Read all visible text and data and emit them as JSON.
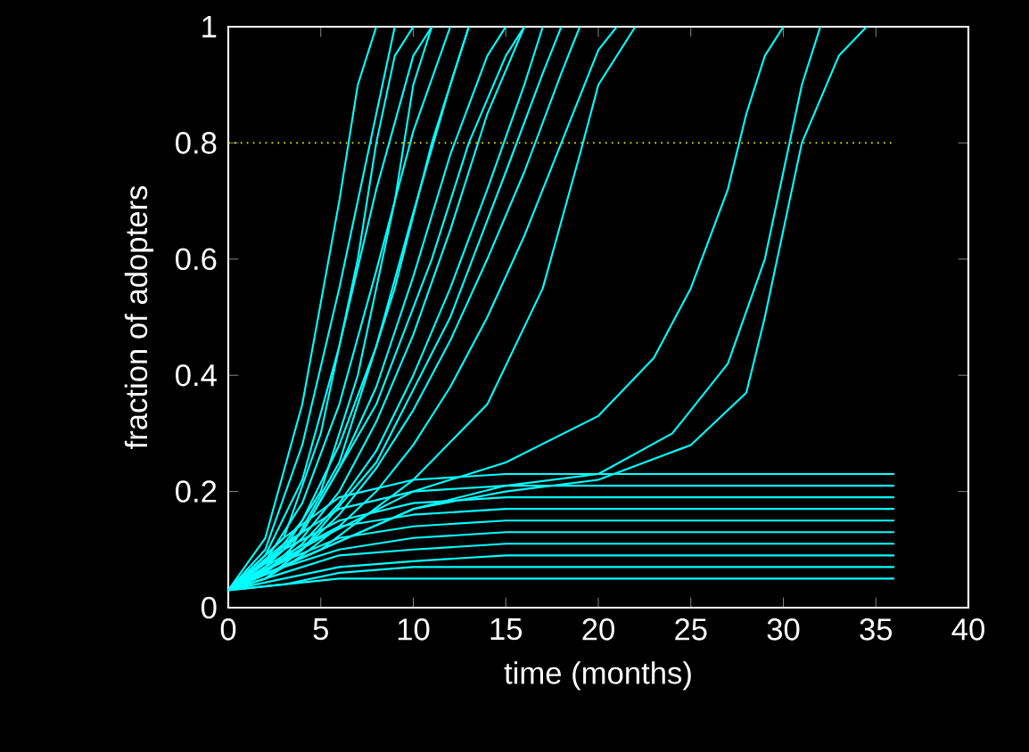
{
  "chart_data": {
    "type": "line",
    "xlabel": "time (months)",
    "ylabel": "fraction of adopters",
    "xlim": [
      0,
      40
    ],
    "ylim": [
      0,
      1
    ],
    "xticks": [
      0,
      5,
      10,
      15,
      20,
      25,
      30,
      35,
      40
    ],
    "yticks": [
      0,
      0.2,
      0.4,
      0.6,
      0.8,
      1
    ],
    "marker": "none",
    "line_style": "solid",
    "ref_lines": [
      {
        "axis": "y",
        "value": 0.8,
        "color": "#ffff00",
        "line_style": "dotted"
      }
    ],
    "series": [
      {
        "color": "#00ffff",
        "x": [
          0,
          2,
          4,
          6,
          7,
          8
        ],
        "values": [
          0.03,
          0.12,
          0.35,
          0.7,
          0.9,
          1
        ]
      },
      {
        "color": "#00ffff",
        "x": [
          0,
          2,
          4,
          6,
          8,
          9
        ],
        "values": [
          0.03,
          0.1,
          0.28,
          0.55,
          0.85,
          1
        ]
      },
      {
        "color": "#00ffff",
        "x": [
          0,
          2,
          4,
          6,
          8,
          10,
          11
        ],
        "values": [
          0.03,
          0.09,
          0.22,
          0.45,
          0.72,
          0.95,
          1
        ]
      },
      {
        "color": "#00ffff",
        "x": [
          0,
          2,
          4,
          6,
          8,
          10,
          12
        ],
        "values": [
          0.03,
          0.08,
          0.18,
          0.35,
          0.58,
          0.82,
          1
        ]
      },
      {
        "color": "#00ffff",
        "x": [
          0,
          2,
          4,
          6,
          8,
          10,
          12,
          13
        ],
        "values": [
          0.03,
          0.07,
          0.15,
          0.28,
          0.45,
          0.68,
          0.9,
          1
        ]
      },
      {
        "color": "#00ffff",
        "x": [
          0,
          2,
          4,
          6,
          8,
          10,
          12,
          14,
          15
        ],
        "values": [
          0.03,
          0.07,
          0.13,
          0.24,
          0.38,
          0.57,
          0.78,
          0.95,
          1
        ]
      },
      {
        "color": "#00ffff",
        "x": [
          0,
          2,
          4,
          6,
          8,
          10,
          12,
          14,
          16
        ],
        "values": [
          0.03,
          0.06,
          0.12,
          0.2,
          0.32,
          0.47,
          0.65,
          0.85,
          1
        ]
      },
      {
        "color": "#00ffff",
        "x": [
          0,
          2,
          4,
          6,
          8,
          10,
          12,
          14,
          16,
          17
        ],
        "values": [
          0.03,
          0.06,
          0.11,
          0.18,
          0.27,
          0.4,
          0.55,
          0.72,
          0.9,
          1
        ]
      },
      {
        "color": "#00ffff",
        "x": [
          0,
          2,
          4,
          6,
          8,
          10,
          12,
          14,
          16,
          18,
          19
        ],
        "values": [
          0.03,
          0.05,
          0.1,
          0.16,
          0.24,
          0.34,
          0.46,
          0.6,
          0.75,
          0.92,
          1
        ]
      },
      {
        "color": "#00ffff",
        "x": [
          0,
          2,
          4,
          6,
          8,
          10,
          12,
          14,
          16,
          18,
          20,
          21
        ],
        "values": [
          0.03,
          0.05,
          0.09,
          0.14,
          0.2,
          0.28,
          0.38,
          0.5,
          0.64,
          0.8,
          0.96,
          1
        ]
      },
      {
        "color": "#00ffff",
        "x": [
          0,
          3,
          5,
          7,
          9,
          10,
          11
        ],
        "values": [
          0.03,
          0.1,
          0.2,
          0.4,
          0.7,
          0.9,
          1
        ]
      },
      {
        "color": "#00ffff",
        "x": [
          0,
          3,
          5,
          7,
          8,
          9,
          10
        ],
        "values": [
          0.03,
          0.12,
          0.3,
          0.6,
          0.8,
          0.95,
          1
        ]
      },
      {
        "color": "#00ffff",
        "x": [
          0,
          3,
          6,
          9,
          11,
          13
        ],
        "values": [
          0.03,
          0.08,
          0.25,
          0.55,
          0.8,
          1
        ]
      },
      {
        "color": "#00ffff",
        "x": [
          0,
          4,
          8,
          11,
          13,
          15,
          16
        ],
        "values": [
          0.03,
          0.13,
          0.35,
          0.6,
          0.8,
          0.95,
          1
        ]
      },
      {
        "color": "#00ffff",
        "x": [
          0,
          4,
          8,
          12,
          15,
          17,
          18
        ],
        "values": [
          0.03,
          0.1,
          0.25,
          0.5,
          0.75,
          0.92,
          1
        ]
      },
      {
        "color": "#00ffff",
        "x": [
          0,
          5,
          10,
          14,
          17,
          19,
          20,
          22
        ],
        "values": [
          0.03,
          0.1,
          0.22,
          0.35,
          0.55,
          0.78,
          0.9,
          1
        ]
      },
      {
        "color": "#00ffff",
        "x": [
          0,
          5,
          10,
          15,
          20,
          23,
          25,
          27,
          28,
          29,
          30
        ],
        "values": [
          0.03,
          0.12,
          0.2,
          0.25,
          0.33,
          0.43,
          0.55,
          0.72,
          0.85,
          0.95,
          1
        ]
      },
      {
        "color": "#00ffff",
        "x": [
          0,
          5,
          10,
          15,
          20,
          24,
          27,
          29,
          30,
          31,
          32
        ],
        "values": [
          0.03,
          0.1,
          0.17,
          0.21,
          0.23,
          0.3,
          0.42,
          0.6,
          0.75,
          0.9,
          1
        ]
      },
      {
        "color": "#00ffff",
        "x": [
          0,
          5,
          10,
          15,
          20,
          25,
          27,
          28,
          29,
          30,
          31,
          33,
          34.5
        ],
        "values": [
          0.03,
          0.1,
          0.17,
          0.2,
          0.22,
          0.28,
          0.34,
          0.37,
          0.5,
          0.65,
          0.8,
          0.95,
          1
        ]
      },
      {
        "color": "#00ffff",
        "x": [
          0,
          3,
          6,
          10,
          15,
          36
        ],
        "values": [
          0.03,
          0.12,
          0.19,
          0.22,
          0.23,
          0.23
        ]
      },
      {
        "color": "#00ffff",
        "x": [
          0,
          3,
          6,
          10,
          15,
          36
        ],
        "values": [
          0.03,
          0.11,
          0.17,
          0.2,
          0.21,
          0.21
        ]
      },
      {
        "color": "#00ffff",
        "x": [
          0,
          3,
          6,
          10,
          15,
          36
        ],
        "values": [
          0.03,
          0.1,
          0.15,
          0.18,
          0.19,
          0.19
        ]
      },
      {
        "color": "#00ffff",
        "x": [
          0,
          3,
          6,
          10,
          15,
          36
        ],
        "values": [
          0.03,
          0.09,
          0.14,
          0.16,
          0.17,
          0.17
        ]
      },
      {
        "color": "#00ffff",
        "x": [
          0,
          3,
          6,
          10,
          15,
          36
        ],
        "values": [
          0.03,
          0.08,
          0.12,
          0.14,
          0.15,
          0.15
        ]
      },
      {
        "color": "#00ffff",
        "x": [
          0,
          3,
          6,
          10,
          15,
          36
        ],
        "values": [
          0.03,
          0.07,
          0.1,
          0.12,
          0.13,
          0.13
        ]
      },
      {
        "color": "#00ffff",
        "x": [
          0,
          3,
          6,
          10,
          15,
          36
        ],
        "values": [
          0.03,
          0.06,
          0.09,
          0.1,
          0.11,
          0.11
        ]
      },
      {
        "color": "#00ffff",
        "x": [
          0,
          3,
          6,
          10,
          15,
          36
        ],
        "values": [
          0.03,
          0.05,
          0.07,
          0.08,
          0.09,
          0.09
        ]
      },
      {
        "color": "#00ffff",
        "x": [
          0,
          3,
          6,
          10,
          15,
          36
        ],
        "values": [
          0.03,
          0.04,
          0.06,
          0.07,
          0.07,
          0.07
        ]
      },
      {
        "color": "#00ffff",
        "x": [
          0,
          3,
          6,
          10,
          15,
          36
        ],
        "values": [
          0.03,
          0.04,
          0.05,
          0.05,
          0.05,
          0.05
        ]
      }
    ]
  }
}
